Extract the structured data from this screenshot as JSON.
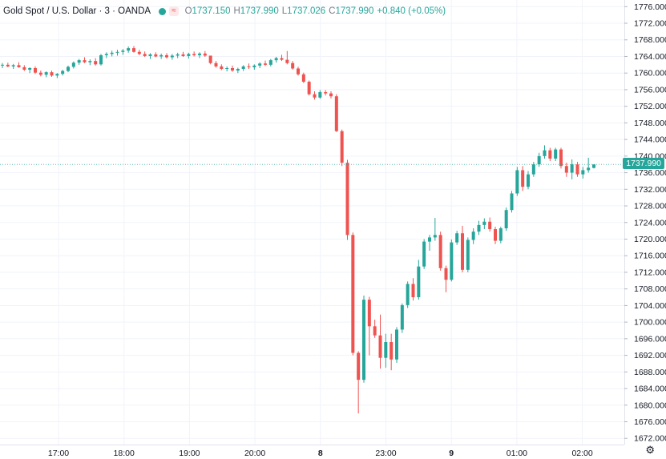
{
  "header": {
    "symbol": "Gold Spot / U.S. Dollar · 3 · OANDA",
    "flag": "≈",
    "open_label": "O",
    "open": "1737.150",
    "high_label": "H",
    "high": "1737.990",
    "low_label": "L",
    "low": "1737.026",
    "close_label": "C",
    "close": "1737.990",
    "change": "+0.840 (+0.05%)"
  },
  "colors": {
    "up": "#26a69a",
    "down": "#ef5350",
    "grid": "#f0f3fa",
    "text": "#131722"
  },
  "chart_data": {
    "type": "candlestick",
    "y_ticks": [
      "1776.000",
      "1772.000",
      "1768.000",
      "1764.000",
      "1760.000",
      "1756.000",
      "1752.000",
      "1748.000",
      "1744.000",
      "1740.000",
      "1736.000",
      "1732.000",
      "1728.000",
      "1724.000",
      "1720.000",
      "1716.000",
      "1712.000",
      "1708.000",
      "1704.000",
      "1700.000",
      "1696.000",
      "1692.000",
      "1688.000",
      "1684.000",
      "1680.000",
      "1676.000",
      "1672.000"
    ],
    "ylim": [
      1670.5,
      1777.6
    ],
    "x_ticks": [
      {
        "label": "17:00",
        "t": 17.0
      },
      {
        "label": "18:00",
        "t": 18.0
      },
      {
        "label": "19:00",
        "t": 19.0
      },
      {
        "label": "20:00",
        "t": 20.0
      },
      {
        "label": "8",
        "t": 21.0
      },
      {
        "label": "23:00",
        "t": 22.0
      },
      {
        "label": "9",
        "t": 23.0
      },
      {
        "label": "01:00",
        "t": 24.0
      },
      {
        "label": "02:00",
        "t": 25.0
      }
    ],
    "last_price": "1737.990",
    "last_price_value": 1737.99,
    "candles": [
      [
        1761.8,
        1762.4,
        1761.2,
        1762.0
      ],
      [
        1762.0,
        1762.5,
        1761.4,
        1761.6
      ],
      [
        1761.6,
        1762.2,
        1761.0,
        1761.9
      ],
      [
        1761.9,
        1762.6,
        1761.3,
        1761.4
      ],
      [
        1761.4,
        1761.9,
        1760.5,
        1760.8
      ],
      [
        1760.8,
        1761.4,
        1760.0,
        1761.2
      ],
      [
        1761.2,
        1761.6,
        1759.8,
        1760.1
      ],
      [
        1760.1,
        1760.6,
        1759.2,
        1759.6
      ],
      [
        1759.6,
        1760.4,
        1759.0,
        1760.2
      ],
      [
        1760.2,
        1760.6,
        1759.1,
        1759.4
      ],
      [
        1759.4,
        1760.0,
        1758.8,
        1759.8
      ],
      [
        1759.8,
        1760.8,
        1759.4,
        1760.5
      ],
      [
        1760.5,
        1761.8,
        1760.2,
        1761.5
      ],
      [
        1761.5,
        1762.8,
        1761.1,
        1762.5
      ],
      [
        1762.5,
        1763.4,
        1762.0,
        1763.1
      ],
      [
        1763.1,
        1763.8,
        1762.4,
        1762.6
      ],
      [
        1762.6,
        1763.3,
        1761.9,
        1762.9
      ],
      [
        1762.9,
        1763.6,
        1761.8,
        1762.1
      ],
      [
        1762.1,
        1764.6,
        1761.8,
        1764.3
      ],
      [
        1764.3,
        1765.0,
        1763.6,
        1764.6
      ],
      [
        1764.6,
        1765.4,
        1764.0,
        1764.9
      ],
      [
        1764.9,
        1765.6,
        1764.2,
        1765.1
      ],
      [
        1765.1,
        1765.8,
        1764.4,
        1765.4
      ],
      [
        1765.4,
        1766.4,
        1764.9,
        1766.0
      ],
      [
        1766.0,
        1766.5,
        1764.9,
        1765.1
      ],
      [
        1765.1,
        1765.6,
        1764.3,
        1764.6
      ],
      [
        1764.6,
        1765.2,
        1763.9,
        1764.1
      ],
      [
        1764.1,
        1764.8,
        1763.4,
        1764.5
      ],
      [
        1764.5,
        1765.0,
        1763.8,
        1764.0
      ],
      [
        1764.0,
        1764.7,
        1763.4,
        1764.3
      ],
      [
        1764.3,
        1764.8,
        1763.5,
        1763.8
      ],
      [
        1763.8,
        1764.6,
        1763.2,
        1764.2
      ],
      [
        1764.2,
        1764.9,
        1763.6,
        1764.5
      ],
      [
        1764.5,
        1765.1,
        1763.9,
        1764.1
      ],
      [
        1764.1,
        1764.9,
        1763.5,
        1764.6
      ],
      [
        1764.6,
        1765.2,
        1764.0,
        1764.3
      ],
      [
        1764.3,
        1765.0,
        1763.6,
        1764.7
      ],
      [
        1764.7,
        1765.3,
        1763.9,
        1764.2
      ],
      [
        1764.2,
        1763.8,
        1762.1,
        1762.4
      ],
      [
        1762.4,
        1762.9,
        1761.3,
        1761.6
      ],
      [
        1761.6,
        1762.1,
        1760.7,
        1761.0
      ],
      [
        1761.0,
        1761.6,
        1760.4,
        1761.2
      ],
      [
        1761.2,
        1761.8,
        1760.3,
        1760.6
      ],
      [
        1760.6,
        1761.3,
        1760.0,
        1761.0
      ],
      [
        1761.0,
        1761.9,
        1760.5,
        1761.6
      ],
      [
        1761.6,
        1762.3,
        1761.0,
        1761.4
      ],
      [
        1761.4,
        1762.1,
        1760.8,
        1761.8
      ],
      [
        1761.8,
        1762.6,
        1761.2,
        1762.3
      ],
      [
        1762.3,
        1763.0,
        1761.7,
        1762.0
      ],
      [
        1762.0,
        1763.4,
        1761.6,
        1763.1
      ],
      [
        1763.1,
        1763.9,
        1762.5,
        1763.6
      ],
      [
        1763.6,
        1764.4,
        1762.9,
        1763.2
      ],
      [
        1763.2,
        1765.3,
        1762.1,
        1762.4
      ],
      [
        1762.4,
        1762.9,
        1760.8,
        1761.1
      ],
      [
        1761.1,
        1761.5,
        1759.4,
        1759.7
      ],
      [
        1759.7,
        1760.1,
        1757.6,
        1757.9
      ],
      [
        1757.9,
        1758.2,
        1754.6,
        1754.9
      ],
      [
        1754.9,
        1755.6,
        1753.6,
        1754.1
      ],
      [
        1754.1,
        1755.9,
        1753.8,
        1755.4
      ],
      [
        1755.4,
        1755.9,
        1754.6,
        1755.1
      ],
      [
        1755.1,
        1755.6,
        1753.9,
        1754.4
      ],
      [
        1754.4,
        1754.9,
        1745.8,
        1746.0
      ],
      [
        1746.0,
        1746.4,
        1737.6,
        1738.4
      ],
      [
        1738.4,
        1739.1,
        1719.8,
        1721.0
      ],
      [
        1721.0,
        1721.6,
        1692.0,
        1692.6
      ],
      [
        1692.6,
        1693.0,
        1678.0,
        1686.1
      ],
      [
        1686.1,
        1706.4,
        1685.4,
        1705.4
      ],
      [
        1705.4,
        1706.1,
        1692.0,
        1699.0
      ],
      [
        1699.0,
        1700.6,
        1696.2,
        1696.8
      ],
      [
        1696.8,
        1701.8,
        1688.8,
        1691.4
      ],
      [
        1691.4,
        1697.2,
        1689.0,
        1695.2
      ],
      [
        1695.2,
        1697.2,
        1688.4,
        1691.0
      ],
      [
        1691.0,
        1698.8,
        1690.2,
        1698.2
      ],
      [
        1698.2,
        1704.5,
        1697.4,
        1704.1
      ],
      [
        1704.1,
        1709.8,
        1703.4,
        1709.2
      ],
      [
        1709.2,
        1710.6,
        1705.2,
        1706.0
      ],
      [
        1706.0,
        1715.0,
        1705.4,
        1713.4
      ],
      [
        1713.4,
        1720.0,
        1712.8,
        1719.4
      ],
      [
        1719.4,
        1721.0,
        1717.2,
        1720.4
      ],
      [
        1720.4,
        1725.1,
        1719.6,
        1721.0
      ],
      [
        1721.0,
        1721.8,
        1712.4,
        1713.0
      ],
      [
        1713.0,
        1713.6,
        1707.2,
        1710.2
      ],
      [
        1710.2,
        1719.9,
        1709.8,
        1719.2
      ],
      [
        1719.2,
        1722.0,
        1718.6,
        1721.4
      ],
      [
        1721.4,
        1723.2,
        1712.0,
        1712.6
      ],
      [
        1712.6,
        1720.4,
        1712.0,
        1719.8
      ],
      [
        1719.8,
        1722.6,
        1718.8,
        1721.8
      ],
      [
        1721.8,
        1724.4,
        1721.0,
        1723.4
      ],
      [
        1723.4,
        1725.0,
        1722.4,
        1724.2
      ],
      [
        1724.2,
        1725.2,
        1721.8,
        1722.4
      ],
      [
        1722.4,
        1723.0,
        1718.8,
        1719.6
      ],
      [
        1719.6,
        1723.0,
        1719.0,
        1722.6
      ],
      [
        1722.6,
        1727.6,
        1722.0,
        1727.0
      ],
      [
        1727.0,
        1731.6,
        1726.4,
        1731.0
      ],
      [
        1731.0,
        1737.4,
        1730.4,
        1736.6
      ],
      [
        1736.6,
        1737.6,
        1731.6,
        1732.6
      ],
      [
        1732.6,
        1736.4,
        1732.0,
        1735.6
      ],
      [
        1735.6,
        1738.6,
        1735.0,
        1738.0
      ],
      [
        1738.0,
        1740.8,
        1737.4,
        1740.0
      ],
      [
        1740.0,
        1742.6,
        1739.4,
        1741.4
      ],
      [
        1741.4,
        1742.0,
        1738.8,
        1739.4
      ],
      [
        1739.4,
        1742.0,
        1738.8,
        1741.6
      ],
      [
        1741.6,
        1742.0,
        1737.0,
        1737.6
      ],
      [
        1737.6,
        1738.4,
        1735.0,
        1736.0
      ],
      [
        1736.0,
        1739.2,
        1734.4,
        1738.0
      ],
      [
        1738.0,
        1738.6,
        1735.0,
        1735.6
      ],
      [
        1735.6,
        1737.4,
        1734.6,
        1736.6
      ],
      [
        1736.6,
        1739.6,
        1736.0,
        1737.2
      ],
      [
        1737.15,
        1737.99,
        1737.026,
        1737.99
      ]
    ]
  },
  "settings_icon": "gear-icon"
}
